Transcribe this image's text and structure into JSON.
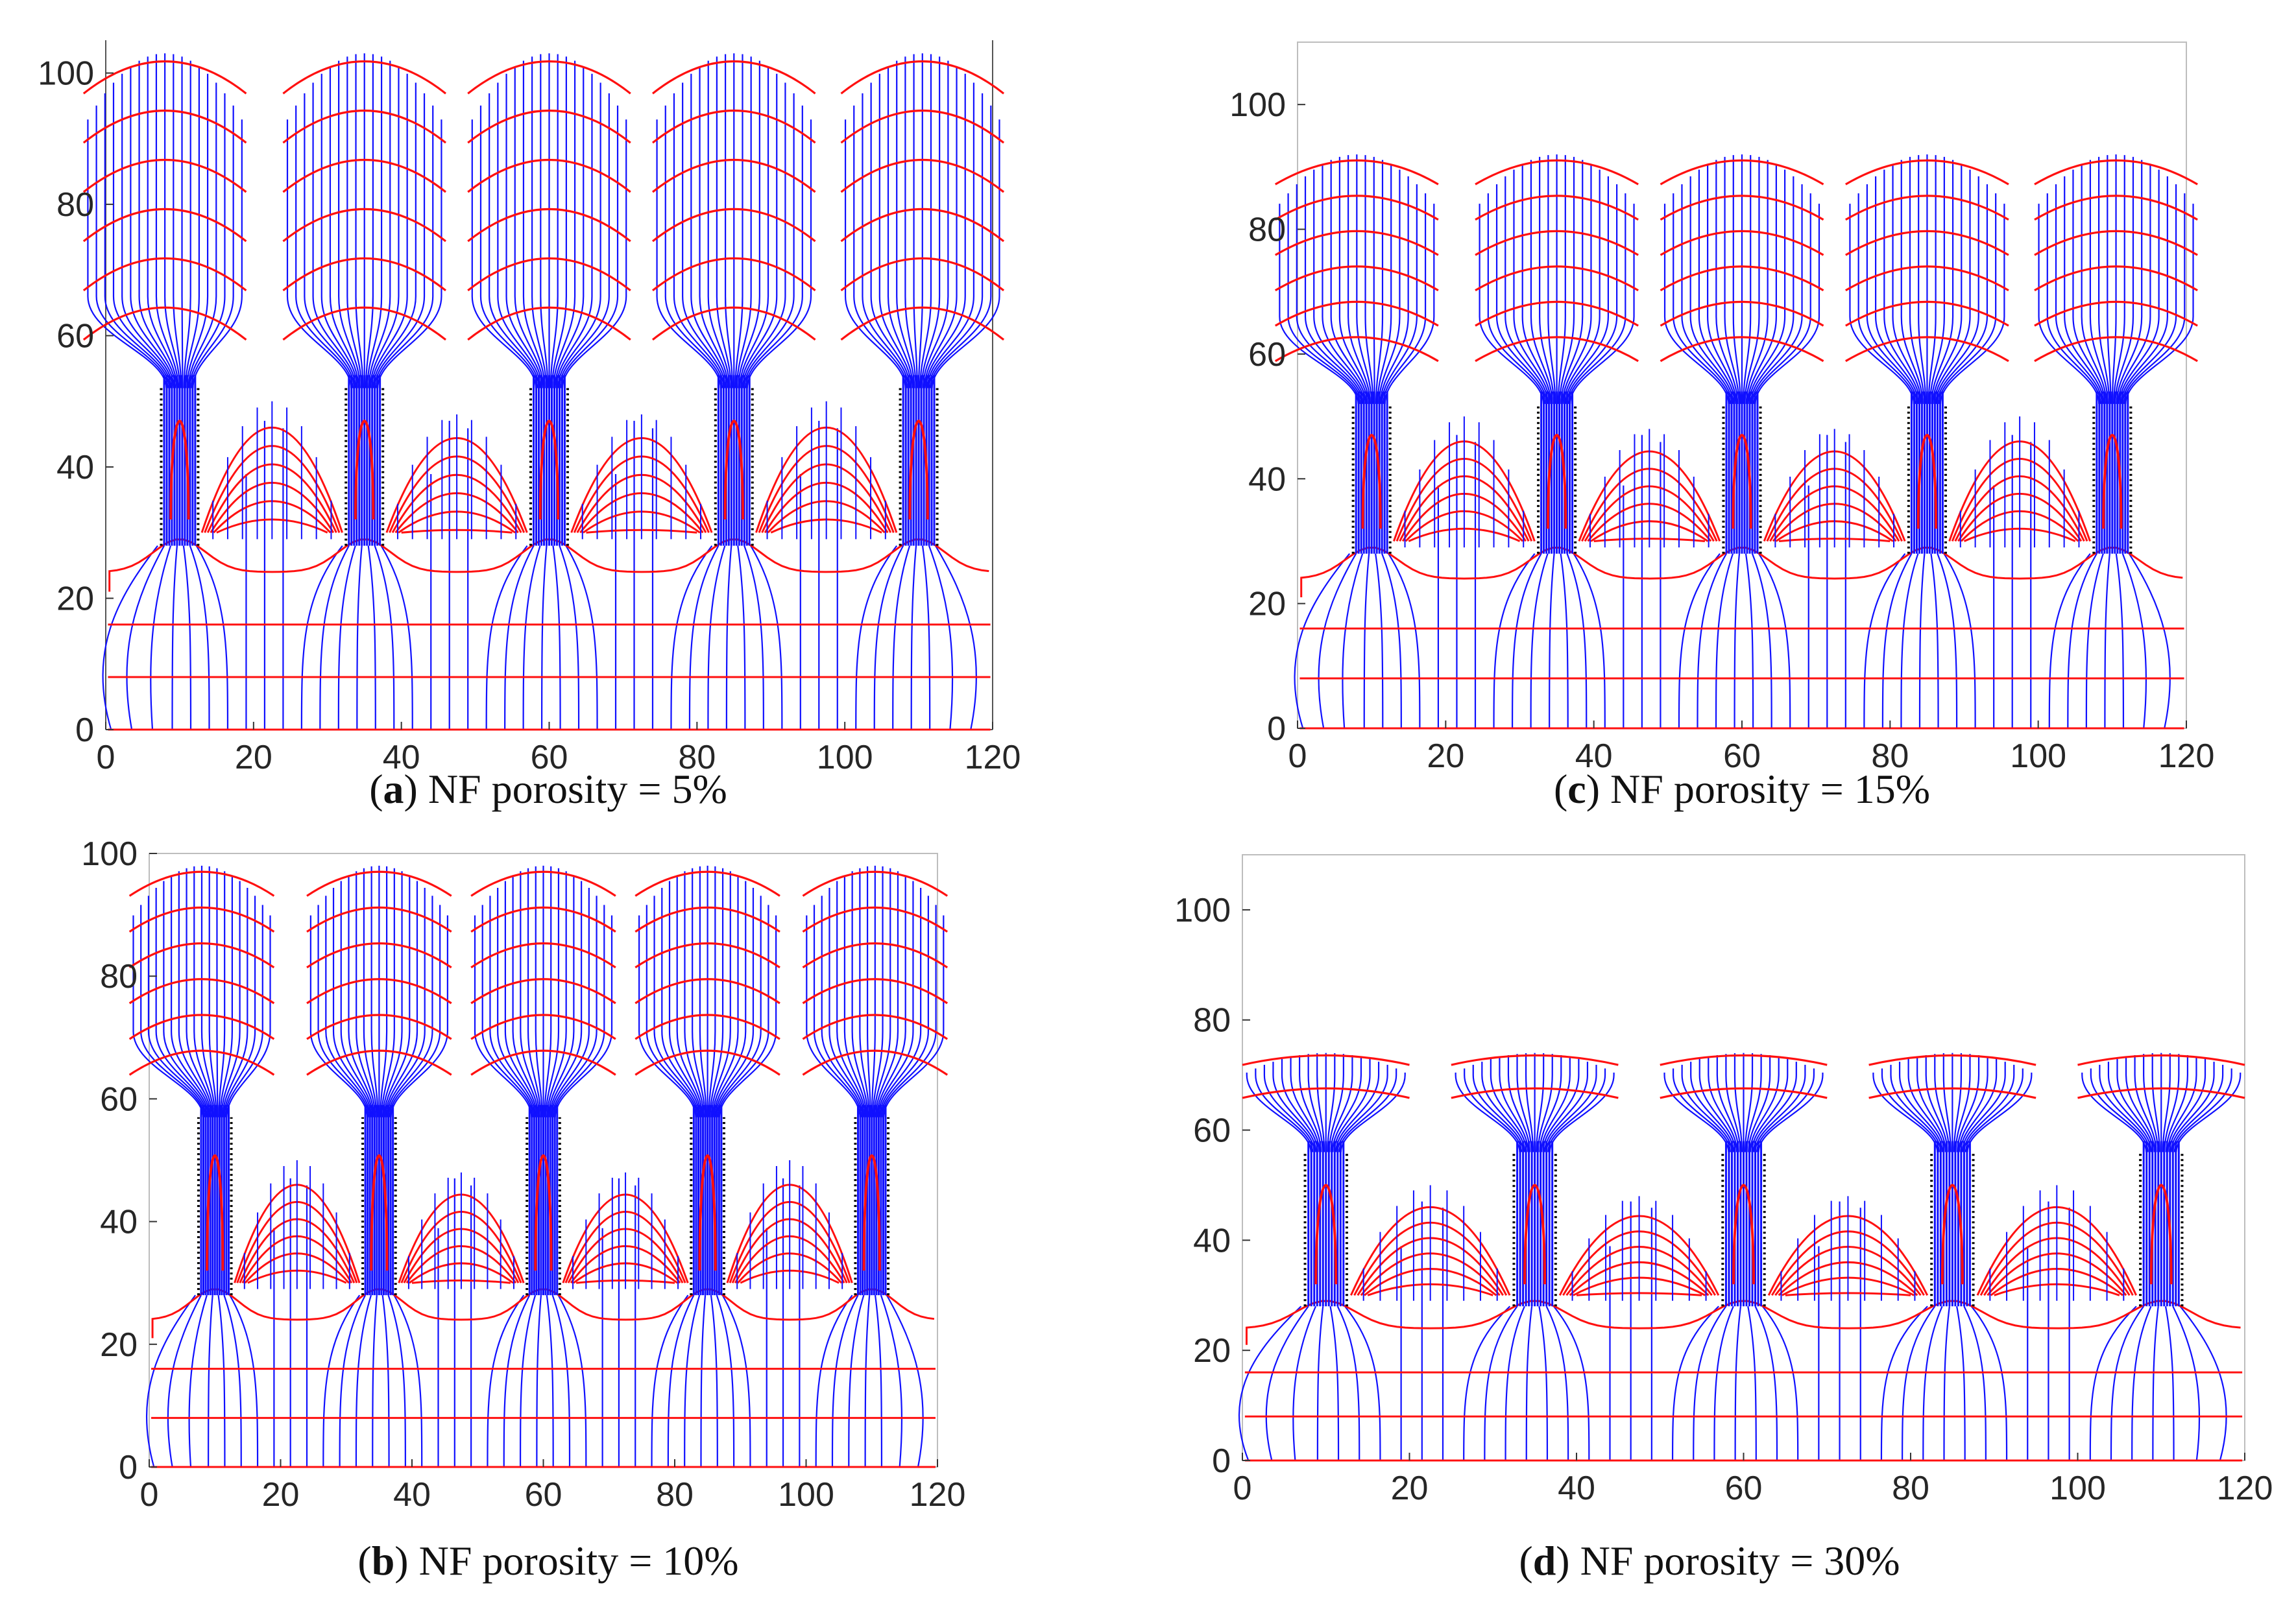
{
  "figure": {
    "layout": "2x2 grid of field-line plots",
    "color_scheme": {
      "field_lines": "#1010ff",
      "equipotentials": "#ff1010",
      "pillar_outline": "#000000"
    }
  },
  "chart_data": [
    {
      "id": "a",
      "type": "line",
      "caption_letter": "a",
      "caption_text": "NF porosity = 5%",
      "xlim": [
        0,
        120
      ],
      "ylim": [
        0,
        105
      ],
      "xticks": [
        "0",
        "20",
        "40",
        "60",
        "80",
        "100",
        "120"
      ],
      "yticks": [
        "0",
        "20",
        "40",
        "60",
        "80",
        "100"
      ],
      "pillars_x": [
        10,
        35,
        60,
        85,
        110
      ],
      "pillar_bottom": 28,
      "pillar_top": 52,
      "bulb_top": 103,
      "bulb_half_width": 11,
      "mid_bump_peaks": [
        50,
        48,
        48,
        50
      ],
      "baseline_levels": [
        0,
        8,
        16,
        24
      ]
    },
    {
      "id": "c",
      "type": "line",
      "caption_letter": "c",
      "caption_text": "NF porosity = 15%",
      "xlim": [
        0,
        120
      ],
      "ylim": [
        0,
        110
      ],
      "xticks": [
        "0",
        "20",
        "40",
        "60",
        "80",
        "100",
        "120"
      ],
      "yticks": [
        "0",
        "20",
        "40",
        "60",
        "80",
        "100"
      ],
      "pillars_x": [
        10,
        35,
        60,
        85,
        110
      ],
      "pillar_bottom": 28,
      "pillar_top": 52,
      "bulb_top": 92,
      "bulb_half_width": 11,
      "mid_bump_peaks": [
        50,
        48,
        48,
        50
      ],
      "baseline_levels": [
        0,
        8,
        16,
        24
      ]
    },
    {
      "id": "b",
      "type": "line",
      "caption_letter": "b",
      "caption_text": "NF porosity = 10%",
      "xlim": [
        0,
        120
      ],
      "ylim": [
        0,
        100
      ],
      "xticks": [
        "0",
        "20",
        "40",
        "60",
        "80",
        "100",
        "120"
      ],
      "yticks": [
        "0",
        "20",
        "40",
        "60",
        "80",
        "100"
      ],
      "pillars_x": [
        10,
        35,
        60,
        85,
        110
      ],
      "pillar_bottom": 28,
      "pillar_top": 57,
      "bulb_top": 98,
      "bulb_half_width": 11,
      "mid_bump_peaks": [
        50,
        48,
        48,
        50
      ],
      "baseline_levels": [
        0,
        8,
        16,
        24
      ]
    },
    {
      "id": "d",
      "type": "line",
      "caption_letter": "d",
      "caption_text": "NF porosity = 30%",
      "xlim": [
        0,
        120
      ],
      "ylim": [
        0,
        110
      ],
      "xticks": [
        "0",
        "20",
        "40",
        "60",
        "80",
        "100",
        "120"
      ],
      "yticks": [
        "0",
        "20",
        "40",
        "60",
        "80",
        "100"
      ],
      "pillars_x": [
        10,
        35,
        60,
        85,
        110
      ],
      "pillar_bottom": 28,
      "pillar_top": 56,
      "bulb_top": 74,
      "bulb_half_width": 10,
      "mid_bump_peaks": [
        50,
        48,
        48,
        50
      ],
      "baseline_levels": [
        0,
        8,
        16,
        24
      ]
    }
  ]
}
